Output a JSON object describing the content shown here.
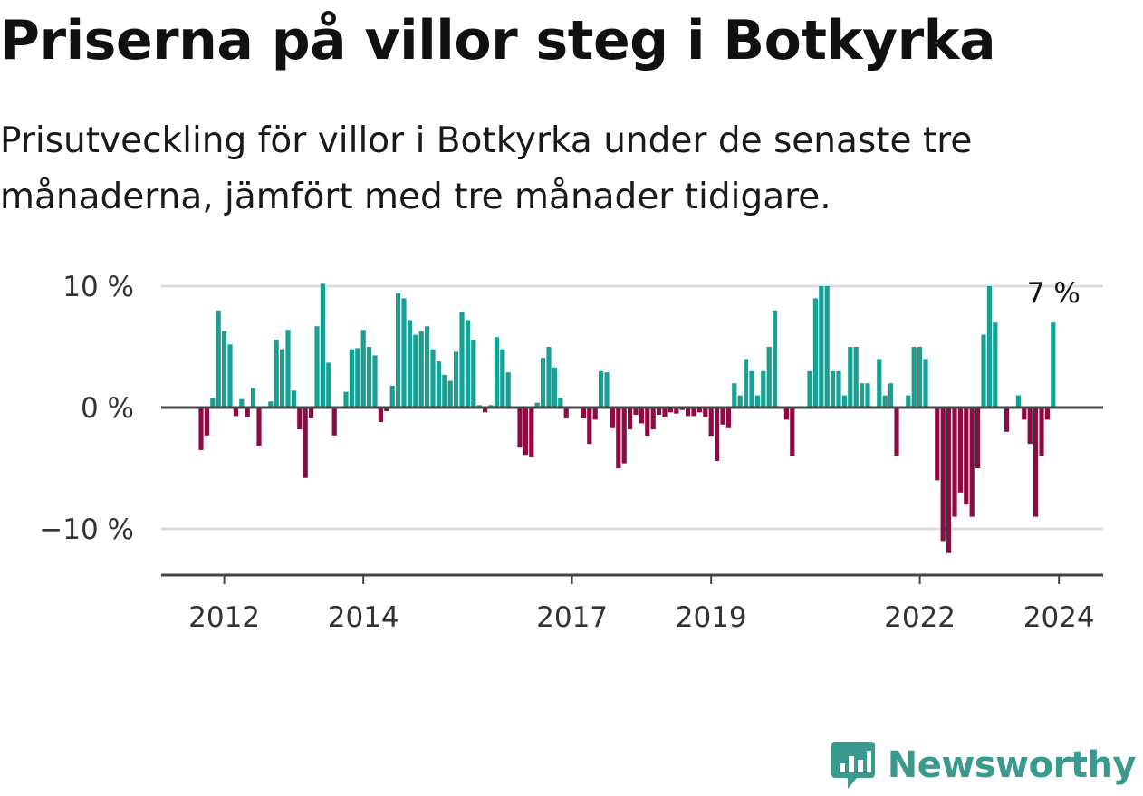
{
  "title": "Priserna på villor steg i Botkyrka",
  "subtitle": "Prisutveckling för villor i Botkyrka under de senaste tre månaderna, jämfört med tre månader tidigare.",
  "brand": {
    "name": "Newsworthy",
    "icon": "newsworthy-chart-logo-icon"
  },
  "colors": {
    "positive": "#17a195",
    "negative": "#8f0a42",
    "axis": "#444444",
    "grid": "#dddddd",
    "brand": "#3a9a8f"
  },
  "chart_data": {
    "type": "bar",
    "x_start": "2011-09",
    "x_interval": "1 month",
    "ylim": [
      -14,
      10
    ],
    "y_ticks": [
      10,
      0,
      -10
    ],
    "y_tick_labels": [
      "10 %",
      "0 %",
      "−10 %"
    ],
    "x_ticks": [
      "2012",
      "2014",
      "2017",
      "2019",
      "2022",
      "2024"
    ],
    "annotation": {
      "text": "7 %",
      "value": 7,
      "target": "last"
    },
    "grid": true,
    "legend": "none",
    "values": [
      -3.5,
      -2.3,
      0.8,
      8.0,
      6.3,
      5.2,
      -0.7,
      0.7,
      -0.8,
      1.6,
      -3.2,
      0.0,
      0.5,
      5.6,
      4.8,
      6.4,
      1.4,
      -1.8,
      -5.8,
      -0.9,
      6.7,
      10.2,
      3.7,
      -2.3,
      0.0,
      1.3,
      4.8,
      4.9,
      6.4,
      5.0,
      4.3,
      -1.2,
      -0.3,
      1.8,
      9.4,
      9.0,
      7.2,
      6.0,
      6.3,
      6.7,
      4.8,
      3.8,
      2.7,
      2.2,
      4.6,
      7.9,
      7.2,
      5.6,
      0.2,
      -0.4,
      0.2,
      5.8,
      4.8,
      2.9,
      0.0,
      -3.3,
      -3.9,
      -4.1,
      0.4,
      4.1,
      5.0,
      3.3,
      0.8,
      -0.9,
      0.0,
      0.0,
      -0.9,
      -3.0,
      -1.0,
      3.0,
      2.9,
      -1.7,
      -5.0,
      -4.6,
      -1.8,
      -0.6,
      -1.3,
      -2.4,
      -1.8,
      -0.6,
      -0.8,
      -0.4,
      -0.5,
      -0.2,
      -0.7,
      -0.7,
      -0.4,
      -0.8,
      -2.4,
      -4.4,
      -1.4,
      -1.7,
      2.0,
      1.0,
      4.0,
      3.0,
      1.0,
      3.0,
      5.0,
      8.0,
      0.0,
      -1.0,
      -4.0,
      0.0,
      0.0,
      3.0,
      9.0,
      10.0,
      10.0,
      3.0,
      3.0,
      1.0,
      5.0,
      5.0,
      2.0,
      2.0,
      0.0,
      4.0,
      1.0,
      2.0,
      -4.0,
      0.0,
      1.0,
      5.0,
      5.0,
      4.0,
      0.0,
      -6.0,
      -11.0,
      -12.0,
      -9.0,
      -7.0,
      -8.0,
      -9.0,
      -5.0,
      6.0,
      10.0,
      7.0,
      0.0,
      -2.0,
      0.0,
      1.0,
      -1.0,
      -3.0,
      -9.0,
      -4.0,
      -1.0,
      7.0
    ]
  }
}
